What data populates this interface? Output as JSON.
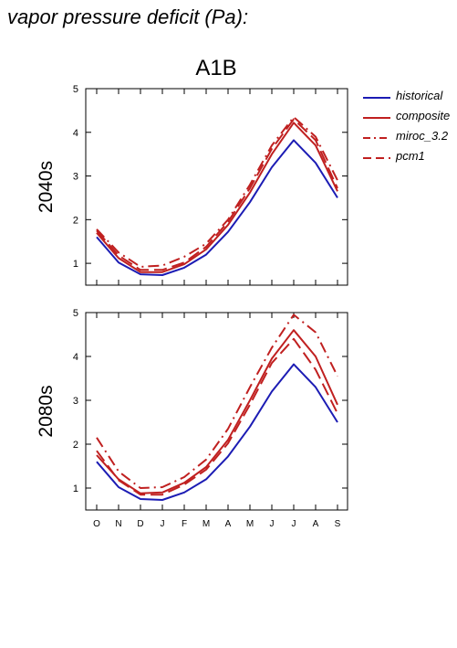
{
  "page_title": "vapor pressure deficit (Pa):",
  "scenario_title": "A1B",
  "legend": [
    {
      "label": "historical",
      "color": "#1c1cb4",
      "dash": "solid"
    },
    {
      "label": "composite",
      "color": "#c02020",
      "dash": "solid"
    },
    {
      "label": "miroc_3.2",
      "color": "#c02020",
      "dash": "dashdot"
    },
    {
      "label": "pcm1",
      "color": "#c02020",
      "dash": "dash"
    }
  ],
  "chart_data": [
    {
      "type": "line",
      "title": "A1B",
      "ylabel": "2040s",
      "xlabel": "",
      "categories": [
        "O",
        "N",
        "D",
        "J",
        "F",
        "M",
        "A",
        "M",
        "J",
        "J",
        "A",
        "S"
      ],
      "ylim": [
        0.5,
        5
      ],
      "yticks": [
        1,
        2,
        3,
        4,
        5
      ],
      "grid": false,
      "legend_position": "right",
      "series": [
        {
          "name": "historical",
          "color": "#1c1cb4",
          "dash": "solid",
          "values": [
            1.6,
            1.02,
            0.75,
            0.73,
            0.9,
            1.2,
            1.72,
            2.4,
            3.2,
            3.82,
            3.3,
            2.5
          ]
        },
        {
          "name": "composite",
          "color": "#c02020",
          "dash": "solid",
          "values": [
            1.7,
            1.12,
            0.8,
            0.8,
            0.98,
            1.32,
            1.88,
            2.62,
            3.5,
            4.22,
            3.7,
            2.65
          ]
        },
        {
          "name": "miroc_3.2",
          "color": "#c02020",
          "dash": "dashdot",
          "values": [
            1.78,
            1.25,
            0.92,
            0.95,
            1.15,
            1.45,
            2.0,
            2.8,
            3.7,
            4.35,
            3.9,
            2.9
          ]
        },
        {
          "name": "pcm1",
          "color": "#c02020",
          "dash": "dash",
          "values": [
            1.75,
            1.18,
            0.85,
            0.85,
            1.02,
            1.38,
            1.95,
            2.72,
            3.62,
            4.3,
            3.82,
            2.72
          ]
        }
      ]
    },
    {
      "type": "line",
      "title": "",
      "ylabel": "2080s",
      "xlabel": "",
      "categories": [
        "O",
        "N",
        "D",
        "J",
        "F",
        "M",
        "A",
        "M",
        "J",
        "J",
        "A",
        "S"
      ],
      "ylim": [
        0.5,
        5
      ],
      "yticks": [
        1,
        2,
        3,
        4,
        5
      ],
      "grid": false,
      "legend_position": "right",
      "series": [
        {
          "name": "historical",
          "color": "#1c1cb4",
          "dash": "solid",
          "values": [
            1.6,
            1.02,
            0.75,
            0.73,
            0.9,
            1.2,
            1.72,
            2.4,
            3.2,
            3.82,
            3.3,
            2.5
          ]
        },
        {
          "name": "composite",
          "color": "#c02020",
          "dash": "solid",
          "values": [
            1.75,
            1.2,
            0.88,
            0.9,
            1.12,
            1.48,
            2.1,
            3.0,
            3.95,
            4.6,
            4.0,
            2.9
          ]
        },
        {
          "name": "miroc_3.2",
          "color": "#c02020",
          "dash": "dashdot",
          "values": [
            2.15,
            1.38,
            1.0,
            1.02,
            1.25,
            1.65,
            2.35,
            3.3,
            4.2,
            4.95,
            4.55,
            3.55
          ]
        },
        {
          "name": "pcm1",
          "color": "#c02020",
          "dash": "dash",
          "values": [
            1.85,
            1.18,
            0.85,
            0.85,
            1.08,
            1.42,
            2.02,
            2.9,
            3.85,
            4.4,
            3.7,
            2.7
          ]
        }
      ]
    }
  ]
}
